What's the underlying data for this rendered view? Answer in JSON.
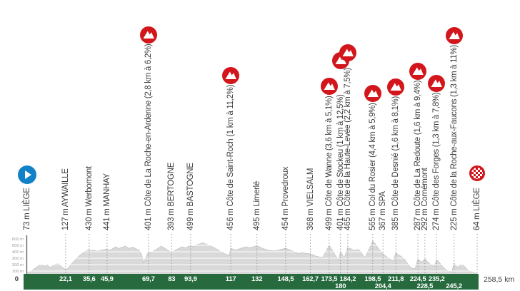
{
  "colors": {
    "climb_badge_red": "#d2161c",
    "start_icon_blue": "#1282c8",
    "finish_icon_red": "#d2161c",
    "band_green": "#266a3e",
    "profile_fill": "#d9d9d9",
    "profile_edge": "#c4c4c4",
    "label_text": "#3d3d3d",
    "band_text": "#ffffff",
    "axis_text": "#9a9a9a"
  },
  "icons": {
    "start": "play-circle-icon",
    "finish": "checkered-circle-icon",
    "climb": "mountain-badge-icon"
  },
  "chart_data": {
    "type": "area",
    "x_unit": "km",
    "y_unit": "m",
    "xlim": [
      0,
      258.5
    ],
    "ylim": [
      0,
      650
    ],
    "grid": {
      "horizontal_m": [
        100,
        200,
        300,
        400,
        500,
        600
      ]
    },
    "origin_label": "0",
    "total_label": "258,5 km",
    "elevation_ticks": [
      {
        "label": "600 m",
        "m": 600
      },
      {
        "label": "500 m",
        "m": 500
      },
      {
        "label": "400 m",
        "m": 400
      },
      {
        "label": "300 m",
        "m": 300
      },
      {
        "label": "200 m",
        "m": 200
      },
      {
        "label": "100 m",
        "m": 100
      }
    ],
    "km_ticks_row1": [
      {
        "label": "22,1",
        "km": 22.1
      },
      {
        "label": "35,6",
        "km": 35.6
      },
      {
        "label": "45,9",
        "km": 45.9
      },
      {
        "label": "69,7",
        "km": 69.7
      },
      {
        "label": "83",
        "km": 83
      },
      {
        "label": "93,9",
        "km": 93.9
      },
      {
        "label": "117",
        "km": 117
      },
      {
        "label": "132",
        "km": 132
      },
      {
        "label": "148,5",
        "km": 148.5
      },
      {
        "label": "162,7",
        "km": 162.7
      },
      {
        "label": "173,5",
        "km": 173.5
      },
      {
        "label": "184,2",
        "km": 184.2
      },
      {
        "label": "198,5",
        "km": 198.5
      },
      {
        "label": "211,8",
        "km": 211.8
      },
      {
        "label": "224,5",
        "km": 224.5
      },
      {
        "label": "235,2",
        "km": 235.2
      }
    ],
    "km_ticks_row2": [
      {
        "label": "180",
        "km": 180
      },
      {
        "label": "204,4",
        "km": 204.4
      },
      {
        "label": "228,5",
        "km": 228.5
      },
      {
        "label": "245,2",
        "km": 245.2
      }
    ],
    "waypoints": [
      {
        "label": "73 m LIÈGE",
        "km": 0,
        "type": "start"
      },
      {
        "label": "127 m AYWAILLE",
        "km": 22.1,
        "type": "town"
      },
      {
        "label": "430 m Werbomont",
        "km": 35.6,
        "type": "town"
      },
      {
        "label": "441 m MANHAY",
        "km": 45.9,
        "type": "town"
      },
      {
        "label": "401 m Côte de La Roche-en-Ardenne (2,8 km à 6,2%)",
        "km": 69.7,
        "type": "climb"
      },
      {
        "label": "393 m BERTOGNE",
        "km": 83,
        "type": "town"
      },
      {
        "label": "499 m BASTOGNE",
        "km": 93.9,
        "type": "town"
      },
      {
        "label": "456 m Côte de Saint-Roch (1 km à 11,2%)",
        "km": 117,
        "type": "climb"
      },
      {
        "label": "495 m Limerlé",
        "km": 132,
        "type": "town"
      },
      {
        "label": "454 m Provedroux",
        "km": 148.5,
        "type": "town"
      },
      {
        "label": "368 m VIELSALM",
        "km": 162.7,
        "type": "town"
      },
      {
        "label": "499 m Côte de Wanne (3,6 km à 5,1%)",
        "km": 173.5,
        "type": "climb"
      },
      {
        "label": "401 m Côte de Stockeu (1 km à 12,5%)",
        "km": 180,
        "type": "climb",
        "badge_dy": -34
      },
      {
        "label": "465 m Côte de la Haute-Levée (2,2 km à 7,5%)",
        "km": 184.2,
        "type": "climb",
        "badge_dy": -8
      },
      {
        "label": "565 m Col du Rosier (4,4 km à 5,9%)",
        "km": 198.5,
        "type": "climb"
      },
      {
        "label": "367 m SPA",
        "km": 204.4,
        "type": "town"
      },
      {
        "label": "385 m Côte de Desnié (1,6 km à 8,1%)",
        "km": 211.8,
        "type": "climb"
      },
      {
        "label": "287 m Côte de La Redoute (1,6 km à 9,4%)",
        "km": 224.5,
        "type": "climb"
      },
      {
        "label": "292 m Cornémont",
        "km": 228.5,
        "type": "town"
      },
      {
        "label": "274 m Côte des Forges (1,3 km à 7,8%)",
        "km": 235.2,
        "type": "climb"
      },
      {
        "label": "225 m Côte de la Roche-aux-Faucons (1,3 km à 11%)",
        "km": 245.2,
        "type": "climb"
      },
      {
        "label": "64 m LIÈGE",
        "km": 258.5,
        "type": "finish"
      }
    ],
    "profile": [
      [
        0,
        73
      ],
      [
        1.5,
        85
      ],
      [
        3,
        110
      ],
      [
        5,
        150
      ],
      [
        7,
        192
      ],
      [
        8.5,
        205
      ],
      [
        10,
        170
      ],
      [
        11.5,
        196
      ],
      [
        13,
        155
      ],
      [
        14.5,
        176
      ],
      [
        16,
        205
      ],
      [
        18,
        212
      ],
      [
        19.5,
        170
      ],
      [
        22.1,
        127
      ],
      [
        23.5,
        142
      ],
      [
        25,
        196
      ],
      [
        27,
        255
      ],
      [
        29,
        312
      ],
      [
        31,
        362
      ],
      [
        33,
        402
      ],
      [
        35.6,
        430
      ],
      [
        36.8,
        412
      ],
      [
        38.5,
        426
      ],
      [
        40,
        406
      ],
      [
        42,
        420
      ],
      [
        44,
        433
      ],
      [
        45.9,
        441
      ],
      [
        47.5,
        424
      ],
      [
        49,
        446
      ],
      [
        51,
        478
      ],
      [
        52.5,
        451
      ],
      [
        54.5,
        469
      ],
      [
        56.5,
        487
      ],
      [
        58.5,
        452
      ],
      [
        60.5,
        471
      ],
      [
        62.5,
        447
      ],
      [
        64.5,
        416
      ],
      [
        65.8,
        352
      ],
      [
        66.9,
        227
      ],
      [
        69.7,
        401
      ],
      [
        71,
        383
      ],
      [
        73,
        419
      ],
      [
        75,
        451
      ],
      [
        77,
        488
      ],
      [
        79,
        456
      ],
      [
        81,
        421
      ],
      [
        83,
        393
      ],
      [
        85,
        421
      ],
      [
        87,
        451
      ],
      [
        89,
        478
      ],
      [
        91,
        461
      ],
      [
        93.9,
        499
      ],
      [
        95.5,
        481
      ],
      [
        97,
        501
      ],
      [
        99,
        521
      ],
      [
        101,
        541
      ],
      [
        103,
        516
      ],
      [
        105,
        491
      ],
      [
        107,
        469
      ],
      [
        109,
        441
      ],
      [
        111,
        406
      ],
      [
        113,
        373
      ],
      [
        116,
        344
      ],
      [
        117,
        456
      ],
      [
        118.5,
        438
      ],
      [
        120,
        424
      ],
      [
        122,
        445
      ],
      [
        124,
        467
      ],
      [
        126,
        478
      ],
      [
        128,
        462
      ],
      [
        130,
        478
      ],
      [
        132,
        495
      ],
      [
        134,
        468
      ],
      [
        136,
        445
      ],
      [
        138,
        428
      ],
      [
        140,
        418
      ],
      [
        142,
        412
      ],
      [
        144,
        424
      ],
      [
        146,
        439
      ],
      [
        148.5,
        454
      ],
      [
        150,
        438
      ],
      [
        152,
        415
      ],
      [
        154,
        392
      ],
      [
        156,
        372
      ],
      [
        158,
        386
      ],
      [
        160,
        374
      ],
      [
        162.7,
        368
      ],
      [
        164,
        356
      ],
      [
        166,
        331
      ],
      [
        168,
        319
      ],
      [
        169.9,
        315
      ],
      [
        173.5,
        499
      ],
      [
        175.5,
        420
      ],
      [
        177,
        341
      ],
      [
        179,
        276
      ],
      [
        180,
        401
      ],
      [
        181,
        362
      ],
      [
        182,
        300
      ],
      [
        184.2,
        465
      ],
      [
        186,
        445
      ],
      [
        188,
        421
      ],
      [
        190,
        436
      ],
      [
        191.5,
        406
      ],
      [
        193,
        341
      ],
      [
        194.1,
        305
      ],
      [
        198.5,
        565
      ],
      [
        200,
        526
      ],
      [
        202,
        441
      ],
      [
        204.4,
        367
      ],
      [
        206,
        331
      ],
      [
        208,
        291
      ],
      [
        210.2,
        255
      ],
      [
        211.8,
        385
      ],
      [
        213,
        358
      ],
      [
        215,
        326
      ],
      [
        217,
        276
      ],
      [
        219,
        196
      ],
      [
        221,
        141
      ],
      [
        222.9,
        137
      ],
      [
        224.5,
        287
      ],
      [
        225.5,
        261
      ],
      [
        226.7,
        238
      ],
      [
        228.5,
        292
      ],
      [
        230,
        243
      ],
      [
        232,
        196
      ],
      [
        233.9,
        173
      ],
      [
        235.2,
        274
      ],
      [
        237,
        226
      ],
      [
        239,
        156
      ],
      [
        241,
        111
      ],
      [
        243.9,
        82
      ],
      [
        245.2,
        225
      ],
      [
        246.3,
        186
      ],
      [
        247.3,
        156
      ],
      [
        248.5,
        186
      ],
      [
        250,
        201
      ],
      [
        251.5,
        166
      ],
      [
        253,
        116
      ],
      [
        255,
        89
      ],
      [
        256.5,
        73
      ],
      [
        258.5,
        64
      ]
    ]
  }
}
